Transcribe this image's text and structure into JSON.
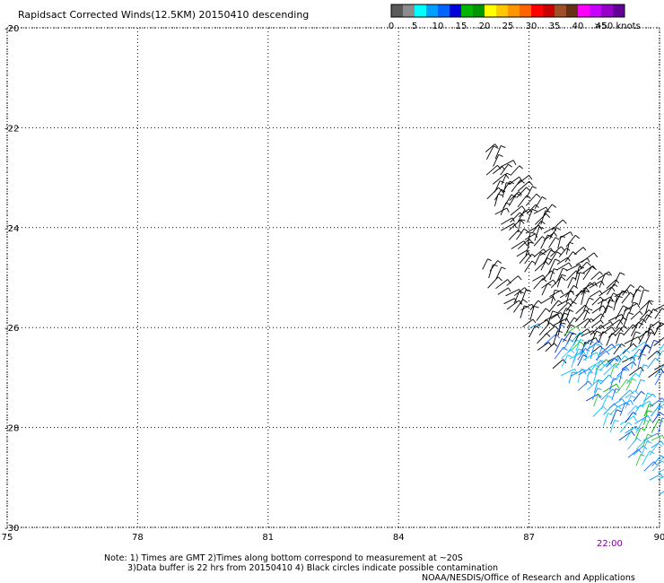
{
  "chart_data": {
    "type": "scatter",
    "title": "Rapidsact Corrected Winds(12.5KM) 20150410 descending",
    "xlim": [
      75,
      90
    ],
    "ylim": [
      -30,
      -20
    ],
    "xticks": [
      75,
      78,
      81,
      84,
      87,
      90
    ],
    "yticks": [
      -20,
      -22,
      -24,
      -26,
      -28,
      -30
    ],
    "xtick_labels": [
      "75",
      "78",
      "81",
      "84",
      "87",
      "90"
    ],
    "ytick_labels": [
      "-20",
      "-22",
      "-24",
      "-26",
      "-28",
      "-30"
    ],
    "grid": true,
    "colorbar": {
      "labels": [
        "0",
        "5",
        "10",
        "15",
        "20",
        "25",
        "30",
        "35",
        "40",
        "45",
        ">50 knots"
      ],
      "colors": [
        "#5a5a5a",
        "#8c8c8c",
        "#00ffff",
        "#00a0ff",
        "#0064ff",
        "#0000dc",
        "#00b400",
        "#009600",
        "#ffff00",
        "#ffc800",
        "#ff9600",
        "#ff6400",
        "#ff0000",
        "#c80000",
        "#a05028",
        "#643214",
        "#ff00ff",
        "#c800ff",
        "#9600c8",
        "#640096"
      ]
    },
    "swaths": [
      {
        "name": "",
        "band": [
          [
            86.0,
            -22.3
          ],
          [
            88.4,
            -24.9
          ],
          [
            90.0,
            -25.7
          ],
          [
            90.0,
            -27.2
          ],
          [
            88.0,
            -26.7
          ],
          [
            86.0,
            -23.5
          ]
        ]
      },
      {
        "name": "",
        "band": [
          [
            85.9,
            -24.7
          ],
          [
            87.8,
            -26.1
          ],
          [
            90.0,
            -27.6
          ],
          [
            90.0,
            -29.4
          ],
          [
            85.9,
            -25.1
          ]
        ]
      }
    ],
    "time_label": "22:00",
    "time_label_x": 88.8
  },
  "notes": {
    "line1": "Note: 1) Times are GMT 2)Times along bottom correspond to measurement at ~20S",
    "line2": "3)Data buffer is 22 hrs from 20150410 4) Black circles indicate possible contamination",
    "credit": "NOAA/NESDIS/Office of Research and Applications"
  }
}
